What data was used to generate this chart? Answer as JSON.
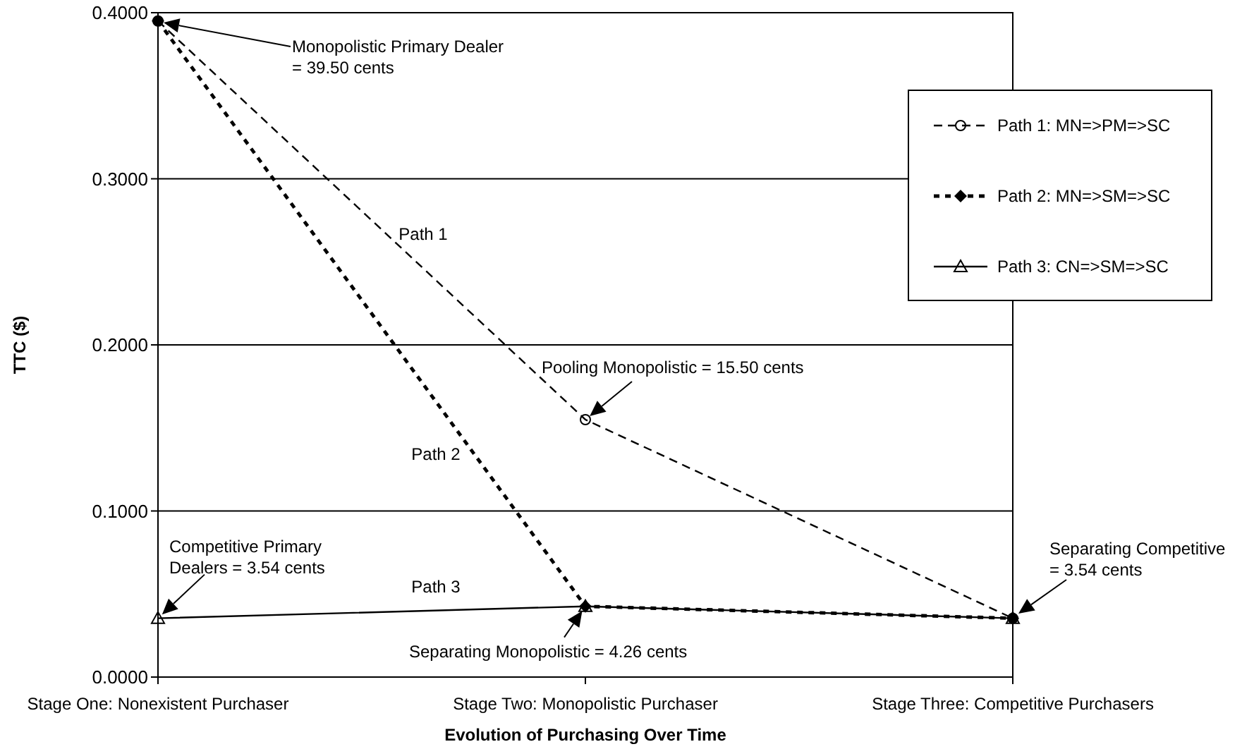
{
  "chart_data": {
    "type": "line",
    "xlabel": "Evolution of Purchasing Over Time",
    "ylabel": "TTC ($)",
    "categories": [
      "Stage One: Nonexistent Purchaser",
      "Stage Two: Monopolistic Purchaser",
      "Stage Three: Competitive Purchasers"
    ],
    "series": [
      {
        "name": "Path 1: MN=>PM=>SC",
        "color": "#000000",
        "values": [
          0.395,
          0.155,
          0.0354
        ],
        "marker": "circle",
        "line_style": "dashed"
      },
      {
        "name": "Path 2: MN=>SM=>SC",
        "color": "#000000",
        "values": [
          0.395,
          0.0426,
          0.0354
        ],
        "marker": "diamond",
        "line_style": "dotted"
      },
      {
        "name": "Path 3: CN=>SM=>SC",
        "color": "#000000",
        "values": [
          0.0354,
          0.0426,
          0.0354
        ],
        "marker": "triangle",
        "line_style": "solid"
      }
    ],
    "ylim": [
      0,
      0.4
    ],
    "yticks": [
      {
        "value": 0,
        "label": "0.0000"
      },
      {
        "value": 0.1,
        "label": "0.1000"
      },
      {
        "value": 0.2,
        "label": "0.2000"
      },
      {
        "value": 0.3,
        "label": "0.3000"
      },
      {
        "value": 0.4,
        "label": "0.4000"
      }
    ],
    "grid": "y",
    "legend": "right",
    "annotations": [
      {
        "text": "Pooling Monopolistic = 15.50 cents",
        "x": "Stage Two: Monopolistic Purchaser",
        "y": 0.155
      },
      {
        "text": "Competitive Primary\nDealers = 3.54 cents",
        "x": "Stage One: Nonexistent Purchaser",
        "y": 0.0354
      },
      {
        "text": "Separating Monopolistic = 4.26 cents",
        "x": "Stage Two: Monopolistic Purchaser",
        "y": 0.0426
      },
      "Monopolistic Primary Dealer\n= 39.50 cents",
      "Separating Competitive\n= 3.54 cents",
      "Path 1",
      "Path 2",
      "Path 3"
    ]
  }
}
